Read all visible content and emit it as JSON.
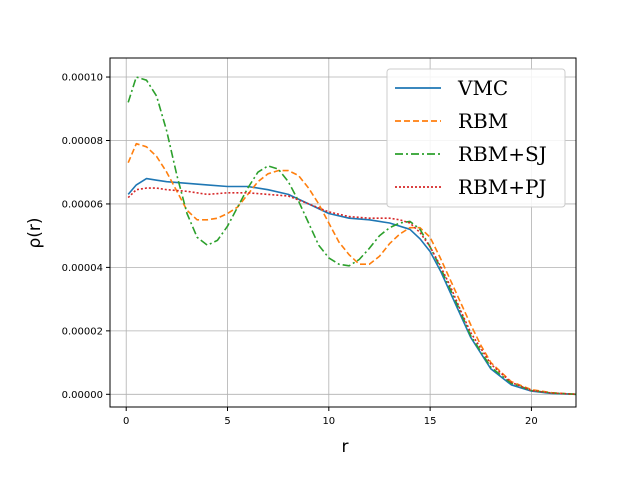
{
  "chart_data": {
    "type": "line",
    "title": "",
    "xlabel": "r",
    "ylabel": "ρ(r)",
    "xlim": [
      -0.8,
      22.2
    ],
    "ylim": [
      -4e-06,
      0.000106
    ],
    "xticks": [
      0,
      5,
      10,
      15,
      20
    ],
    "yticks": [
      0.0,
      2e-05,
      4e-05,
      6e-05,
      8e-05,
      0.0001
    ],
    "xtick_labels": [
      "0",
      "5",
      "10",
      "15",
      "20"
    ],
    "ytick_labels": [
      "0.00000",
      "0.00002",
      "0.00004",
      "0.00006",
      "0.00008",
      "0.00010"
    ],
    "grid": true,
    "legend_position": "top-right",
    "series": [
      {
        "name": "VMC",
        "color": "#1f77b4",
        "dash": "solid",
        "x": [
          0.1,
          0.5,
          1.0,
          1.5,
          2.0,
          3.0,
          4.0,
          5.0,
          6.0,
          7.0,
          8.0,
          9.0,
          10.0,
          11.0,
          12.0,
          13.0,
          14.0,
          14.5,
          15.0,
          15.5,
          16.0,
          16.5,
          17.0,
          18.0,
          19.0,
          20.0,
          21.0,
          22.2
        ],
        "y": [
          6.3e-05,
          6.6e-05,
          6.8e-05,
          6.75e-05,
          6.7e-05,
          6.65e-05,
          6.6e-05,
          6.55e-05,
          6.55e-05,
          6.45e-05,
          6.3e-05,
          6e-05,
          5.7e-05,
          5.55e-05,
          5.5e-05,
          5.4e-05,
          5.2e-05,
          4.9e-05,
          4.5e-05,
          3.9e-05,
          3.2e-05,
          2.5e-05,
          1.8e-05,
          8e-06,
          3e-06,
          1e-06,
          3e-07,
          0.0
        ]
      },
      {
        "name": "RBM",
        "color": "#ff7f0e",
        "dash": "dashed",
        "x": [
          0.1,
          0.5,
          1.0,
          1.5,
          2.0,
          2.5,
          3.0,
          3.5,
          4.0,
          4.5,
          5.0,
          5.5,
          6.0,
          6.5,
          7.0,
          7.5,
          8.0,
          8.5,
          9.0,
          9.5,
          10.0,
          10.5,
          11.0,
          11.5,
          12.0,
          12.5,
          13.0,
          13.5,
          14.0,
          14.5,
          15.0,
          15.5,
          16.0,
          16.5,
          17.0,
          17.5,
          18.0,
          19.0,
          20.0,
          21.0,
          22.2
        ],
        "y": [
          7.3e-05,
          7.9e-05,
          7.8e-05,
          7.5e-05,
          7e-05,
          6.4e-05,
          5.8e-05,
          5.5e-05,
          5.5e-05,
          5.55e-05,
          5.7e-05,
          5.9e-05,
          6.3e-05,
          6.7e-05,
          6.95e-05,
          7.05e-05,
          7.05e-05,
          6.9e-05,
          6.5e-05,
          6e-05,
          5.4e-05,
          4.8e-05,
          4.4e-05,
          4.1e-05,
          4.1e-05,
          4.35e-05,
          4.75e-05,
          5.05e-05,
          5.25e-05,
          5.25e-05,
          4.95e-05,
          4.3e-05,
          3.6e-05,
          2.9e-05,
          2.2e-05,
          1.55e-05,
          1e-05,
          4e-06,
          1.5e-06,
          5e-07,
          0.0
        ]
      },
      {
        "name": "RBM+SJ",
        "color": "#2ca02c",
        "dash": "dashdot",
        "x": [
          0.1,
          0.5,
          1.0,
          1.5,
          2.0,
          2.5,
          3.0,
          3.5,
          4.0,
          4.5,
          5.0,
          5.5,
          6.0,
          6.5,
          7.0,
          7.5,
          8.0,
          8.5,
          9.0,
          9.5,
          10.0,
          10.5,
          11.0,
          11.5,
          12.0,
          12.5,
          13.0,
          13.5,
          14.0,
          14.5,
          15.0,
          15.5,
          16.0,
          16.5,
          17.0,
          18.0,
          19.0,
          20.0,
          21.0,
          22.2
        ],
        "y": [
          9.2e-05,
          0.0001,
          9.9e-05,
          9.4e-05,
          8.3e-05,
          6.9e-05,
          5.7e-05,
          4.95e-05,
          4.7e-05,
          4.85e-05,
          5.3e-05,
          5.9e-05,
          6.5e-05,
          7e-05,
          7.2e-05,
          7.1e-05,
          6.7e-05,
          6.1e-05,
          5.4e-05,
          4.7e-05,
          4.3e-05,
          4.1e-05,
          4.05e-05,
          4.25e-05,
          4.6e-05,
          5e-05,
          5.25e-05,
          5.4e-05,
          5.45e-05,
          5.2e-05,
          4.65e-05,
          4e-05,
          3.3e-05,
          2.6e-05,
          1.85e-05,
          8.5e-06,
          3.5e-06,
          1.2e-06,
          4e-07,
          0.0
        ]
      },
      {
        "name": "RBM+PJ",
        "color": "#d62728",
        "dash": "dotted",
        "x": [
          0.1,
          0.5,
          1.0,
          1.5,
          2.0,
          3.0,
          4.0,
          5.0,
          6.0,
          7.0,
          8.0,
          9.0,
          10.0,
          11.0,
          12.0,
          13.0,
          13.5,
          14.0,
          14.5,
          15.0,
          15.5,
          16.0,
          16.5,
          17.0,
          18.0,
          19.0,
          20.0,
          21.0,
          22.2
        ],
        "y": [
          6.2e-05,
          6.45e-05,
          6.5e-05,
          6.5e-05,
          6.45e-05,
          6.4e-05,
          6.3e-05,
          6.35e-05,
          6.35e-05,
          6.3e-05,
          6.25e-05,
          6e-05,
          5.75e-05,
          5.6e-05,
          5.55e-05,
          5.55e-05,
          5.5e-05,
          5.4e-05,
          5.1e-05,
          4.65e-05,
          4.05e-05,
          3.4e-05,
          2.65e-05,
          1.95e-05,
          9.5e-06,
          3.8e-06,
          1.2e-06,
          4e-07,
          0.0
        ]
      }
    ]
  }
}
